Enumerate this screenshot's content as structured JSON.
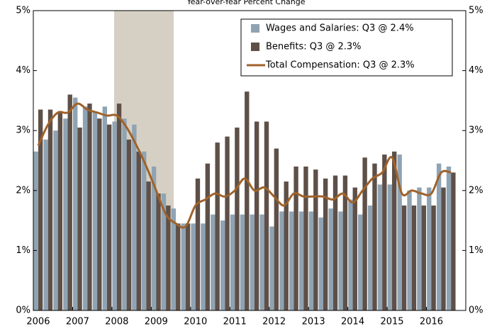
{
  "chart_data": {
    "type": "bar",
    "title": "Year-over-Year Percent Change",
    "categories": [
      "2006",
      null,
      null,
      null,
      "2007",
      null,
      null,
      null,
      "2008",
      null,
      null,
      null,
      "2009",
      null,
      null,
      null,
      "2010",
      null,
      null,
      null,
      "2011",
      null,
      null,
      null,
      "2012",
      null,
      null,
      null,
      "2013",
      null,
      null,
      null,
      "2014",
      null,
      null,
      null,
      "2015",
      null,
      null,
      null,
      "2016",
      null,
      null
    ],
    "series": [
      {
        "name": "Wages and Salaries: Q3 @ 2.4%",
        "type": "bar",
        "color": "#8fa3b3",
        "values": [
          2.65,
          2.85,
          3.0,
          3.2,
          3.55,
          3.4,
          3.3,
          3.4,
          3.15,
          3.2,
          3.1,
          2.65,
          2.4,
          1.95,
          1.7,
          1.45,
          1.45,
          1.45,
          1.6,
          1.5,
          1.6,
          1.6,
          1.6,
          1.6,
          1.4,
          1.65,
          1.65,
          1.65,
          1.65,
          1.55,
          1.7,
          1.65,
          1.85,
          1.6,
          1.75,
          2.1,
          2.1,
          2.6,
          2.0,
          2.05,
          2.05,
          2.45,
          2.4
        ]
      },
      {
        "name": "Benefits: Q3 @ 2.3%",
        "type": "bar",
        "color": "#5e5048",
        "values": [
          3.35,
          3.35,
          3.3,
          3.6,
          3.05,
          3.45,
          3.2,
          3.1,
          3.45,
          2.85,
          2.65,
          2.15,
          1.95,
          1.75,
          1.45,
          1.45,
          2.2,
          2.45,
          2.8,
          2.9,
          3.05,
          3.65,
          3.15,
          3.15,
          2.7,
          2.15,
          2.4,
          2.4,
          2.35,
          2.2,
          2.25,
          2.25,
          2.05,
          2.55,
          2.45,
          2.6,
          2.65,
          1.75,
          1.75,
          1.75,
          1.75,
          2.05,
          2.3
        ]
      },
      {
        "name": "Total Compensation: Q3 @ 2.3%",
        "type": "line",
        "color": "#a0622a",
        "values": [
          2.75,
          3.1,
          3.3,
          3.3,
          3.45,
          3.35,
          3.3,
          3.25,
          3.25,
          3.05,
          2.75,
          2.4,
          2.0,
          1.6,
          1.45,
          1.4,
          1.75,
          1.85,
          1.95,
          1.9,
          2.0,
          2.2,
          2.0,
          2.05,
          1.9,
          1.75,
          1.95,
          1.9,
          1.9,
          1.9,
          1.85,
          1.95,
          1.8,
          2.0,
          2.2,
          2.3,
          2.55,
          1.95,
          2.0,
          1.95,
          1.95,
          2.3,
          2.3
        ]
      }
    ],
    "ylim": [
      0,
      5
    ],
    "yticks": [
      {
        "value": 0,
        "label": "0%"
      },
      {
        "value": 1,
        "label": "1%"
      },
      {
        "value": 2,
        "label": "2%"
      },
      {
        "value": 3,
        "label": "3%"
      },
      {
        "value": 4,
        "label": "4%"
      },
      {
        "value": 5,
        "label": "5%"
      }
    ],
    "y2lim": [
      0,
      5
    ],
    "y2ticks": [
      {
        "value": 0,
        "label": "0%"
      },
      {
        "value": 1,
        "label": "1%"
      },
      {
        "value": 2,
        "label": "2%"
      },
      {
        "value": 3,
        "label": "3%"
      },
      {
        "value": 4,
        "label": "4%"
      },
      {
        "value": 5,
        "label": "5%"
      }
    ],
    "grid": false,
    "legend": "upper right"
  }
}
